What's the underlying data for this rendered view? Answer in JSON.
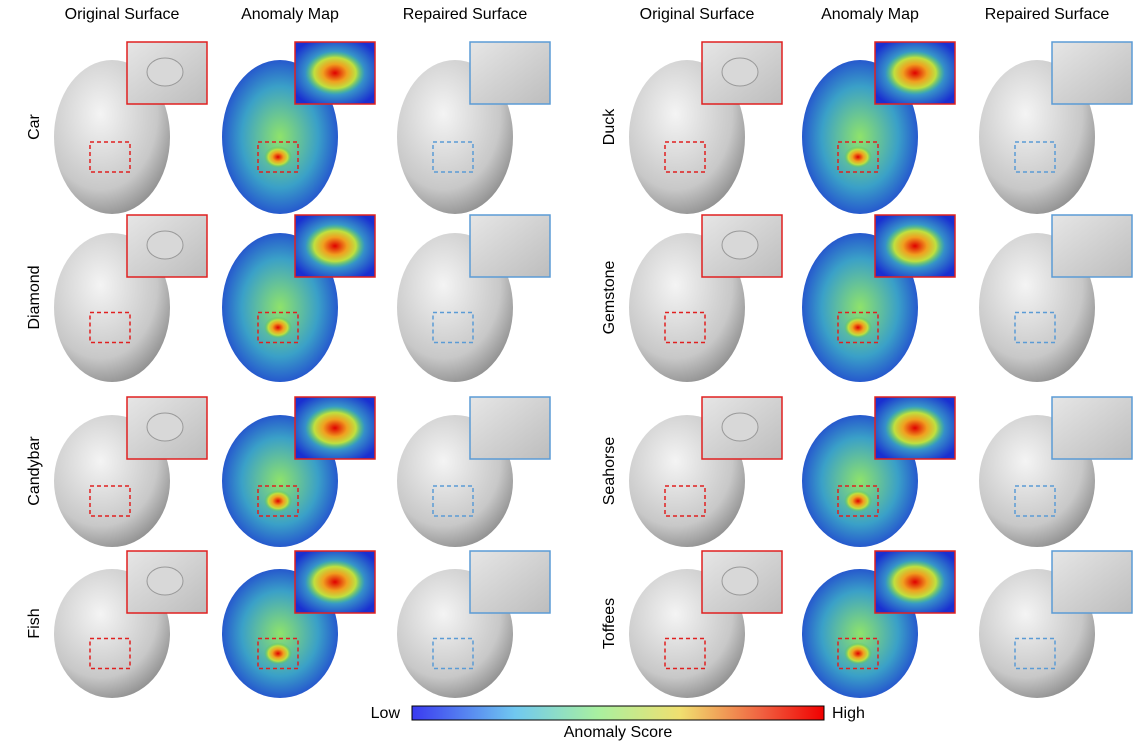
{
  "columns": [
    "Original Surface",
    "Anomaly Map",
    "Repaired Surface"
  ],
  "left_rows": [
    "Car",
    "Diamond",
    "Candybar",
    "Fish"
  ],
  "right_rows": [
    "Duck",
    "Gemstone",
    "Seahorse",
    "Toffees"
  ],
  "colorbar": {
    "low": "Low",
    "high": "High",
    "label": "Anomaly Score"
  }
}
